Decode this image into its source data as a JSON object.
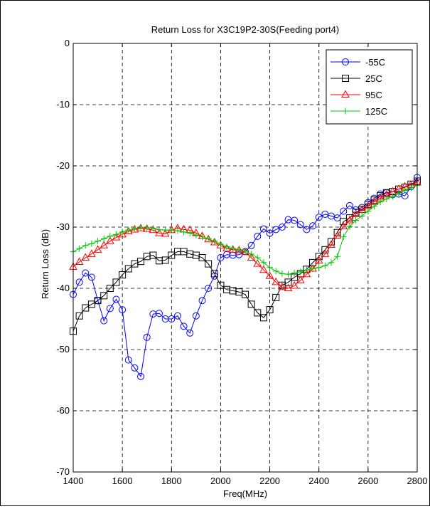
{
  "chart_data": {
    "type": "line",
    "title": "Return Loss for X3C19P2-30S(Feeding port4)",
    "xlabel": "Freq(MHz)",
    "ylabel": "Return Loss (dB)",
    "xlim": [
      1400,
      2800
    ],
    "ylim": [
      -70,
      0
    ],
    "xticks": [
      1400,
      1600,
      1800,
      2000,
      2200,
      2400,
      2600,
      2800
    ],
    "yticks": [
      0,
      -10,
      -20,
      -30,
      -40,
      -50,
      -60,
      -70
    ],
    "grid": true,
    "legend_position": "top-right",
    "series": [
      {
        "name": "-55C",
        "color": "#0000ff",
        "marker": "circle",
        "x": [
          1400,
          1425,
          1450,
          1475,
          1500,
          1525,
          1550,
          1575,
          1600,
          1625,
          1650,
          1675,
          1700,
          1725,
          1750,
          1775,
          1800,
          1825,
          1850,
          1875,
          1900,
          1925,
          1950,
          1975,
          2000,
          2025,
          2050,
          2075,
          2100,
          2125,
          2150,
          2175,
          2200,
          2225,
          2250,
          2275,
          2300,
          2325,
          2350,
          2375,
          2400,
          2425,
          2450,
          2475,
          2500,
          2525,
          2550,
          2575,
          2600,
          2625,
          2650,
          2675,
          2700,
          2725,
          2750,
          2775,
          2800
        ],
        "y": [
          -41,
          -39,
          -37.5,
          -38.2,
          -42,
          -45.3,
          -43.3,
          -41.8,
          -43.5,
          -51.7,
          -53,
          -54.4,
          -48,
          -44.2,
          -44.1,
          -45,
          -45,
          -44.5,
          -46.2,
          -47.3,
          -44.5,
          -42,
          -40,
          -38,
          -35,
          -34.5,
          -34.6,
          -34.5,
          -34,
          -33,
          -31.5,
          -30.3,
          -31,
          -30.4,
          -30,
          -28.8,
          -28.9,
          -29.6,
          -30.4,
          -29.8,
          -28.4,
          -27.9,
          -28.2,
          -28.5,
          -27.4,
          -26.5,
          -27.2,
          -26.8,
          -26,
          -25.3,
          -24.6,
          -24.4,
          -24.7,
          -24.6,
          -24.9,
          -23.4,
          -21.9
        ]
      },
      {
        "name": "25C",
        "color": "#000000",
        "marker": "square",
        "x": [
          1400,
          1425,
          1450,
          1475,
          1500,
          1525,
          1550,
          1575,
          1600,
          1625,
          1650,
          1675,
          1700,
          1725,
          1750,
          1775,
          1800,
          1825,
          1850,
          1875,
          1900,
          1925,
          1950,
          1975,
          2000,
          2025,
          2050,
          2075,
          2100,
          2125,
          2150,
          2175,
          2200,
          2225,
          2250,
          2275,
          2300,
          2325,
          2350,
          2375,
          2400,
          2425,
          2450,
          2475,
          2500,
          2525,
          2550,
          2575,
          2600,
          2625,
          2650,
          2675,
          2700,
          2725,
          2750,
          2775,
          2800
        ],
        "y": [
          -47,
          -44.5,
          -43.2,
          -42.6,
          -42,
          -41.2,
          -40,
          -39,
          -37.8,
          -36.8,
          -36,
          -35.6,
          -34.8,
          -34.6,
          -35.5,
          -35.4,
          -34.6,
          -34,
          -34,
          -34.4,
          -34.6,
          -35,
          -36,
          -37.6,
          -39.5,
          -40.2,
          -40.4,
          -40.6,
          -41,
          -42.6,
          -44,
          -44.8,
          -43.5,
          -41.5,
          -39.5,
          -39,
          -38.2,
          -37.6,
          -36.9,
          -35.8,
          -34.8,
          -33.7,
          -32.4,
          -30.9,
          -29.1,
          -28.5,
          -27.6,
          -27.1,
          -26.3,
          -25.6,
          -24.9,
          -24.4,
          -24.2,
          -23.8,
          -23.5,
          -23,
          -22.5
        ]
      },
      {
        "name": "95C",
        "color": "#ff0000",
        "marker": "triangle",
        "x": [
          1400,
          1425,
          1450,
          1475,
          1500,
          1525,
          1550,
          1575,
          1600,
          1625,
          1650,
          1675,
          1700,
          1725,
          1750,
          1775,
          1800,
          1825,
          1850,
          1875,
          1900,
          1925,
          1950,
          1975,
          2000,
          2025,
          2050,
          2075,
          2100,
          2125,
          2150,
          2175,
          2200,
          2225,
          2250,
          2275,
          2300,
          2325,
          2350,
          2375,
          2400,
          2425,
          2450,
          2475,
          2500,
          2525,
          2550,
          2575,
          2600,
          2625,
          2650,
          2675,
          2700,
          2725,
          2750,
          2775,
          2800
        ],
        "y": [
          -36.5,
          -35.7,
          -35,
          -34.4,
          -33.7,
          -33,
          -32.3,
          -31.7,
          -31.2,
          -30.7,
          -30.4,
          -30.2,
          -30.3,
          -30.5,
          -31,
          -31.1,
          -30.5,
          -30.2,
          -30.4,
          -30.5,
          -31,
          -31.5,
          -32,
          -32.5,
          -33,
          -33.5,
          -33.7,
          -33.8,
          -34.1,
          -35,
          -36,
          -37,
          -38,
          -39,
          -39.8,
          -40,
          -39.6,
          -38.7,
          -37.7,
          -36.8,
          -35.5,
          -34.4,
          -32.9,
          -31.4,
          -29.9,
          -28.9,
          -27.9,
          -27.2,
          -26.6,
          -25.9,
          -25.3,
          -24.7,
          -24.2,
          -23.8,
          -23.4,
          -23.1,
          -22.7
        ]
      },
      {
        "name": "125C",
        "color": "#00c800",
        "marker": "plus",
        "x": [
          1400,
          1425,
          1450,
          1475,
          1500,
          1525,
          1550,
          1575,
          1600,
          1625,
          1650,
          1675,
          1700,
          1725,
          1750,
          1775,
          1800,
          1825,
          1850,
          1875,
          1900,
          1925,
          1950,
          1975,
          2000,
          2025,
          2050,
          2075,
          2100,
          2125,
          2150,
          2175,
          2200,
          2225,
          2250,
          2275,
          2300,
          2325,
          2350,
          2375,
          2400,
          2425,
          2450,
          2475,
          2500,
          2525,
          2550,
          2575,
          2600,
          2625,
          2650,
          2675,
          2700,
          2725,
          2750,
          2775,
          2800
        ],
        "y": [
          -34,
          -33.5,
          -33,
          -32.7,
          -32.3,
          -31.9,
          -31.5,
          -31.2,
          -30.8,
          -30.5,
          -30.2,
          -30.1,
          -30.1,
          -30.2,
          -30.4,
          -30.5,
          -30.5,
          -30.6,
          -30.8,
          -31,
          -31.3,
          -31.6,
          -31.9,
          -32.3,
          -32.8,
          -33.2,
          -33.5,
          -33.7,
          -33.9,
          -34.4,
          -35,
          -35.8,
          -36.6,
          -37.2,
          -37.6,
          -37.7,
          -37.5,
          -37.3,
          -37,
          -36.8,
          -36.6,
          -36.3,
          -35.8,
          -34.8,
          -31.6,
          -29.9,
          -28.9,
          -28.2,
          -27.4,
          -26.6,
          -25.9,
          -25.4,
          -25,
          -24.5,
          -24,
          -23.6,
          -23.2
        ]
      }
    ]
  }
}
